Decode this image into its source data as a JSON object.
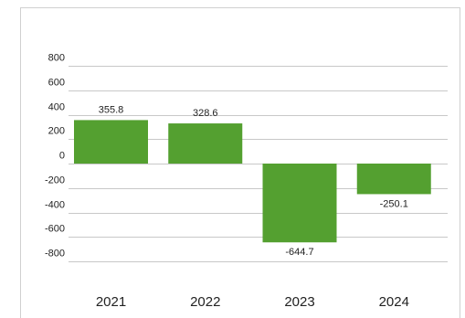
{
  "chart_data": {
    "type": "bar",
    "title": "",
    "xlabel": "",
    "ylabel": "",
    "categories": [
      "2021",
      "2022",
      "2023",
      "2024"
    ],
    "values": [
      355.8,
      328.6,
      -644.7,
      -250.1
    ],
    "data_labels": [
      "355.8",
      "328.6",
      "-644.7",
      "-250.1"
    ],
    "ylim": [
      -800,
      800
    ],
    "yticks": [
      800,
      600,
      400,
      200,
      0,
      -200,
      -400,
      -600,
      -800
    ],
    "grid": true,
    "legend": "none",
    "bar_color": "#54a030"
  }
}
